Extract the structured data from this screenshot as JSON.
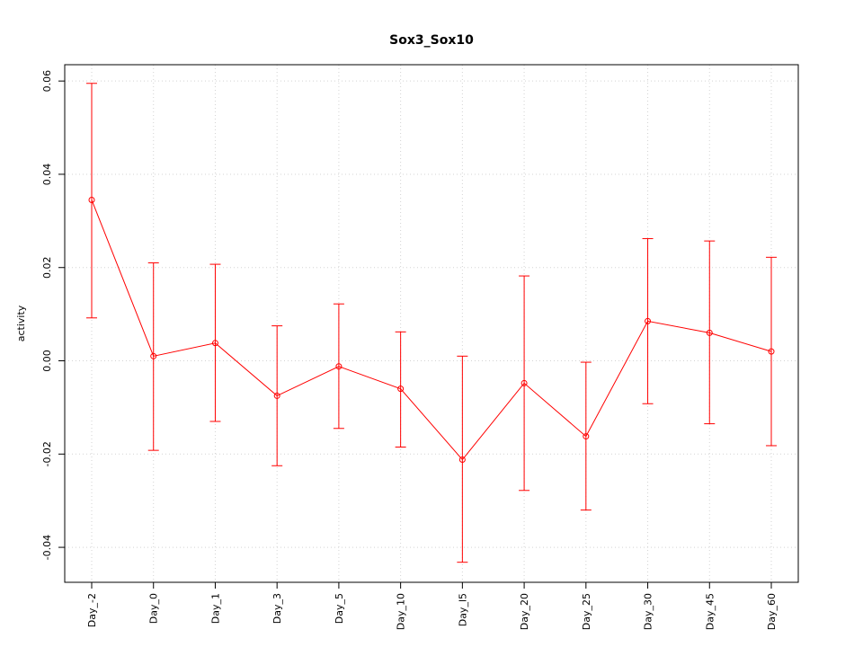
{
  "chart_data": {
    "type": "line",
    "title": "Sox3_Sox10",
    "xlabel": "",
    "ylabel": "activity",
    "categories": [
      "Day_-2",
      "Day_0",
      "Day_1",
      "Day_3",
      "Day_5",
      "Day_10",
      "Day_l5",
      "Day_20",
      "Day_25",
      "Day_30",
      "Day_45",
      "Day_60"
    ],
    "series": [
      {
        "values": [
          0.0345,
          0.001,
          0.0038,
          -0.0075,
          -0.0012,
          -0.006,
          -0.0212,
          -0.0048,
          -0.0162,
          0.0085,
          0.006,
          0.002
        ],
        "upper": [
          0.0595,
          0.021,
          0.0207,
          0.0075,
          0.0122,
          0.0062,
          0.001,
          0.0182,
          -0.0003,
          0.0262,
          0.0257,
          0.0222
        ],
        "lower": [
          0.0092,
          -0.0192,
          -0.013,
          -0.0225,
          -0.0145,
          -0.0185,
          -0.0432,
          -0.0278,
          -0.032,
          -0.0092,
          -0.0135,
          -0.0182
        ],
        "color": "#ff0000"
      }
    ],
    "ylim": [
      -0.0475,
      0.0635
    ],
    "yticks": [
      -0.04,
      -0.02,
      0.0,
      0.02,
      0.04,
      0.06
    ],
    "ytick_labels": [
      "-0.04",
      "-0.02",
      "0.00",
      "0.02",
      "0.04",
      "0.06"
    ],
    "grid": true
  }
}
